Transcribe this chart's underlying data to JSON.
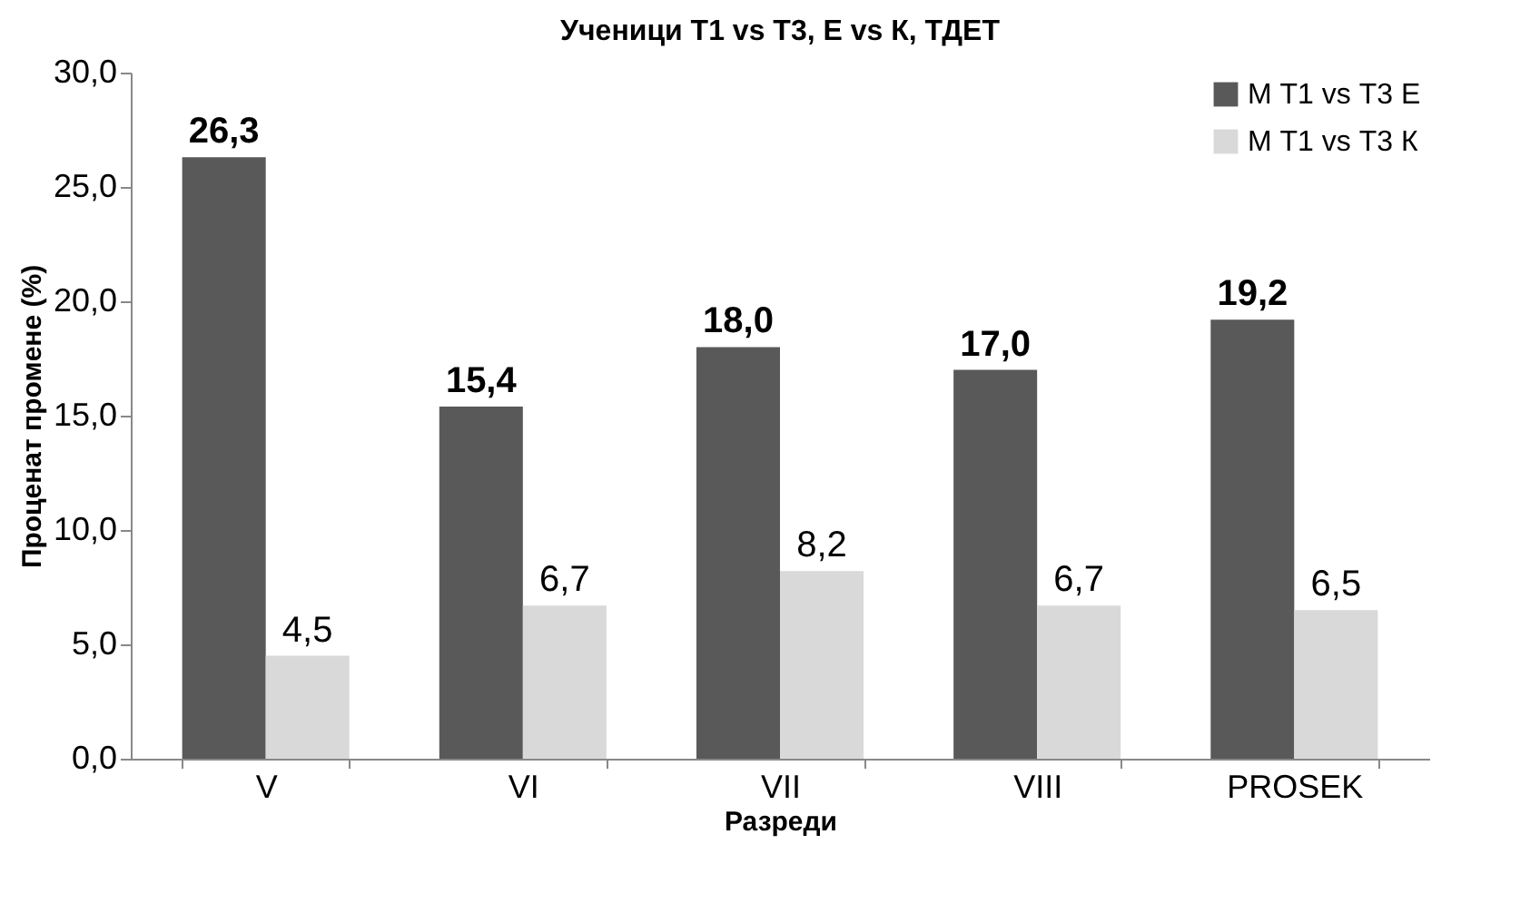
{
  "chart_data": {
    "type": "bar",
    "title": "Ученици Т1 vs Т3, Е vs К, ТДЕТ",
    "xlabel": "Разреди",
    "ylabel": "Проценат промене (%)",
    "categories": [
      "V",
      "VI",
      "VII",
      "VIII",
      "PROSEK"
    ],
    "series": [
      {
        "name": "М Т1 vs Т3 Е",
        "color": "#595959",
        "values": [
          26.3,
          15.4,
          18.0,
          17.0,
          19.2
        ],
        "value_labels": [
          "26,3",
          "15,4",
          "18,0",
          "17,0",
          "19,2"
        ]
      },
      {
        "name": "М Т1 vs Т3 К",
        "color": "#d9d9d9",
        "values": [
          4.5,
          6.7,
          8.2,
          6.7,
          6.5
        ],
        "value_labels": [
          "4,5",
          "6,7",
          "8,2",
          "6,7",
          "6,5"
        ]
      }
    ],
    "ylim": [
      0,
      30
    ],
    "yticks": [
      {
        "value": 0,
        "label": "0,0"
      },
      {
        "value": 5,
        "label": "5,0"
      },
      {
        "value": 10,
        "label": "10,0"
      },
      {
        "value": 15,
        "label": "15,0"
      },
      {
        "value": 20,
        "label": "20,0"
      },
      {
        "value": 25,
        "label": "25,0"
      },
      {
        "value": 30,
        "label": "30,0"
      }
    ],
    "grid": false,
    "legend": "top right"
  }
}
